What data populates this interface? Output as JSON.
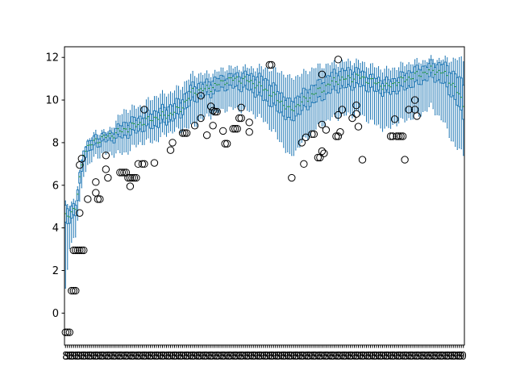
{
  "chart_data": {
    "type": "box",
    "title": "",
    "xlabel": "",
    "ylabel": "",
    "ylim": [
      -1.5,
      12.5
    ],
    "yticks": [
      0,
      2,
      4,
      6,
      8,
      10,
      12
    ],
    "xlim": [
      0.5,
      198.5
    ],
    "x_tick_labels_overlapping": true,
    "x_tick_label_text_visible": [
      "0",
      "8",
      "9"
    ],
    "n_boxes_estimate": 198,
    "box_color": "#1f77b4",
    "median_color": "#2ca02c",
    "outlier_style": "open circle, black edge",
    "envelope": {
      "x": [
        1,
        3,
        6,
        10,
        16,
        22,
        30,
        38,
        46,
        52,
        58,
        64,
        70,
        76,
        80,
        86,
        92,
        100,
        108,
        112,
        118,
        124,
        128,
        134,
        140,
        146,
        152,
        160,
        164,
        170,
        176,
        182,
        188,
        194,
        198
      ],
      "whisker_high": [
        5.1,
        5.2,
        5.3,
        7.8,
        8.5,
        8.5,
        9.5,
        9.7,
        10.2,
        10.3,
        10.6,
        11.2,
        11.2,
        11.3,
        11.5,
        11.5,
        11.5,
        11.5,
        11.3,
        11.0,
        11.2,
        11.5,
        11.6,
        11.7,
        11.8,
        11.8,
        11.6,
        11.4,
        11.5,
        11.7,
        11.8,
        11.9,
        11.9,
        11.9,
        11.9
      ],
      "q3": [
        4.9,
        5.0,
        5.1,
        7.8,
        8.3,
        8.4,
        8.9,
        9.2,
        9.5,
        9.7,
        10.0,
        10.7,
        10.8,
        11.0,
        11.1,
        11.2,
        11.2,
        11.0,
        10.3,
        9.9,
        10.3,
        10.7,
        10.9,
        11.3,
        11.4,
        11.4,
        11.1,
        10.9,
        11.0,
        11.3,
        11.5,
        11.7,
        11.7,
        11.2,
        10.8
      ],
      "median": [
        4.5,
        4.7,
        4.9,
        7.6,
        8.1,
        8.3,
        8.6,
        8.9,
        9.2,
        9.3,
        9.6,
        10.4,
        10.5,
        10.7,
        10.9,
        11.0,
        10.9,
        10.5,
        9.9,
        9.5,
        9.9,
        10.3,
        10.5,
        10.9,
        11.0,
        11.1,
        10.9,
        10.6,
        10.8,
        11.0,
        11.2,
        11.4,
        11.3,
        10.6,
        9.8
      ],
      "q1": [
        4.1,
        4.4,
        4.6,
        7.3,
        7.9,
        8.1,
        8.3,
        8.6,
        8.8,
        9.0,
        9.3,
        10.0,
        10.2,
        10.4,
        10.6,
        10.6,
        10.5,
        10.0,
        9.4,
        9.0,
        9.5,
        9.9,
        10.1,
        10.5,
        10.6,
        10.7,
        10.5,
        10.3,
        10.4,
        10.6,
        10.8,
        11.1,
        10.8,
        10.0,
        9.2
      ],
      "whisker_low": [
        1.0,
        3.2,
        3.6,
        6.6,
        7.4,
        7.5,
        7.5,
        8.0,
        8.1,
        8.5,
        8.6,
        8.8,
        9.2,
        9.4,
        9.6,
        9.6,
        9.5,
        9.0,
        8.0,
        7.3,
        8.0,
        8.6,
        8.9,
        9.2,
        9.3,
        9.4,
        9.0,
        8.6,
        8.9,
        9.1,
        9.3,
        9.7,
        9.0,
        7.8,
        7.5
      ]
    },
    "outliers": [
      {
        "x": 1,
        "y": -0.9
      },
      {
        "x": 2,
        "y": -0.9
      },
      {
        "x": 3,
        "y": -0.9
      },
      {
        "x": 4,
        "y": 1.05
      },
      {
        "x": 5,
        "y": 1.05
      },
      {
        "x": 6,
        "y": 1.05
      },
      {
        "x": 5,
        "y": 2.95
      },
      {
        "x": 6,
        "y": 2.95
      },
      {
        "x": 7,
        "y": 2.95
      },
      {
        "x": 8,
        "y": 2.95
      },
      {
        "x": 9,
        "y": 2.95
      },
      {
        "x": 10,
        "y": 2.95
      },
      {
        "x": 8,
        "y": 4.7
      },
      {
        "x": 8,
        "y": 6.95
      },
      {
        "x": 9,
        "y": 7.25
      },
      {
        "x": 12,
        "y": 5.35
      },
      {
        "x": 16,
        "y": 6.15
      },
      {
        "x": 16,
        "y": 5.65
      },
      {
        "x": 17,
        "y": 5.35
      },
      {
        "x": 18,
        "y": 5.35
      },
      {
        "x": 21,
        "y": 7.4
      },
      {
        "x": 21,
        "y": 6.75
      },
      {
        "x": 22,
        "y": 6.35
      },
      {
        "x": 28,
        "y": 6.6
      },
      {
        "x": 29,
        "y": 6.6
      },
      {
        "x": 30,
        "y": 6.6
      },
      {
        "x": 31,
        "y": 6.6
      },
      {
        "x": 32,
        "y": 6.35
      },
      {
        "x": 33,
        "y": 6.35
      },
      {
        "x": 34,
        "y": 6.35
      },
      {
        "x": 35,
        "y": 6.35
      },
      {
        "x": 36,
        "y": 6.35
      },
      {
        "x": 33,
        "y": 5.95
      },
      {
        "x": 37,
        "y": 7.0
      },
      {
        "x": 39,
        "y": 7.0
      },
      {
        "x": 40,
        "y": 7.0
      },
      {
        "x": 40,
        "y": 9.55
      },
      {
        "x": 45,
        "y": 7.05
      },
      {
        "x": 53,
        "y": 7.65
      },
      {
        "x": 54,
        "y": 8.0
      },
      {
        "x": 59,
        "y": 8.45
      },
      {
        "x": 60,
        "y": 8.45
      },
      {
        "x": 61,
        "y": 8.45
      },
      {
        "x": 65,
        "y": 8.8
      },
      {
        "x": 68,
        "y": 10.2
      },
      {
        "x": 68,
        "y": 9.15
      },
      {
        "x": 71,
        "y": 8.35
      },
      {
        "x": 73,
        "y": 9.7
      },
      {
        "x": 74,
        "y": 9.5
      },
      {
        "x": 74,
        "y": 8.8
      },
      {
        "x": 75,
        "y": 9.45
      },
      {
        "x": 76,
        "y": 9.45
      },
      {
        "x": 79,
        "y": 8.55
      },
      {
        "x": 80,
        "y": 7.95
      },
      {
        "x": 81,
        "y": 7.95
      },
      {
        "x": 84,
        "y": 8.65
      },
      {
        "x": 85,
        "y": 8.65
      },
      {
        "x": 86,
        "y": 8.65
      },
      {
        "x": 87,
        "y": 9.15
      },
      {
        "x": 88,
        "y": 9.15
      },
      {
        "x": 88,
        "y": 9.65
      },
      {
        "x": 92,
        "y": 8.95
      },
      {
        "x": 92,
        "y": 8.5
      },
      {
        "x": 102,
        "y": 11.65
      },
      {
        "x": 103,
        "y": 11.65
      },
      {
        "x": 113,
        "y": 6.35
      },
      {
        "x": 118,
        "y": 8.0
      },
      {
        "x": 119,
        "y": 7.0
      },
      {
        "x": 120,
        "y": 8.25
      },
      {
        "x": 123,
        "y": 8.4
      },
      {
        "x": 124,
        "y": 8.4
      },
      {
        "x": 126,
        "y": 7.3
      },
      {
        "x": 127,
        "y": 7.3
      },
      {
        "x": 128,
        "y": 7.6
      },
      {
        "x": 129,
        "y": 7.5
      },
      {
        "x": 128,
        "y": 8.85
      },
      {
        "x": 128,
        "y": 11.2
      },
      {
        "x": 130,
        "y": 8.6
      },
      {
        "x": 135,
        "y": 8.3
      },
      {
        "x": 136,
        "y": 8.3
      },
      {
        "x": 136,
        "y": 9.3
      },
      {
        "x": 136,
        "y": 11.9
      },
      {
        "x": 137,
        "y": 8.5
      },
      {
        "x": 138,
        "y": 9.55
      },
      {
        "x": 143,
        "y": 9.15
      },
      {
        "x": 145,
        "y": 9.35
      },
      {
        "x": 145,
        "y": 9.75
      },
      {
        "x": 146,
        "y": 8.75
      },
      {
        "x": 148,
        "y": 7.2
      },
      {
        "x": 162,
        "y": 8.3
      },
      {
        "x": 163,
        "y": 8.3
      },
      {
        "x": 164,
        "y": 9.1
      },
      {
        "x": 165,
        "y": 8.3
      },
      {
        "x": 166,
        "y": 8.3
      },
      {
        "x": 167,
        "y": 8.3
      },
      {
        "x": 168,
        "y": 8.3
      },
      {
        "x": 169,
        "y": 7.2
      },
      {
        "x": 171,
        "y": 9.55
      },
      {
        "x": 174,
        "y": 10.0
      },
      {
        "x": 174,
        "y": 9.55
      },
      {
        "x": 175,
        "y": 9.25
      }
    ]
  }
}
